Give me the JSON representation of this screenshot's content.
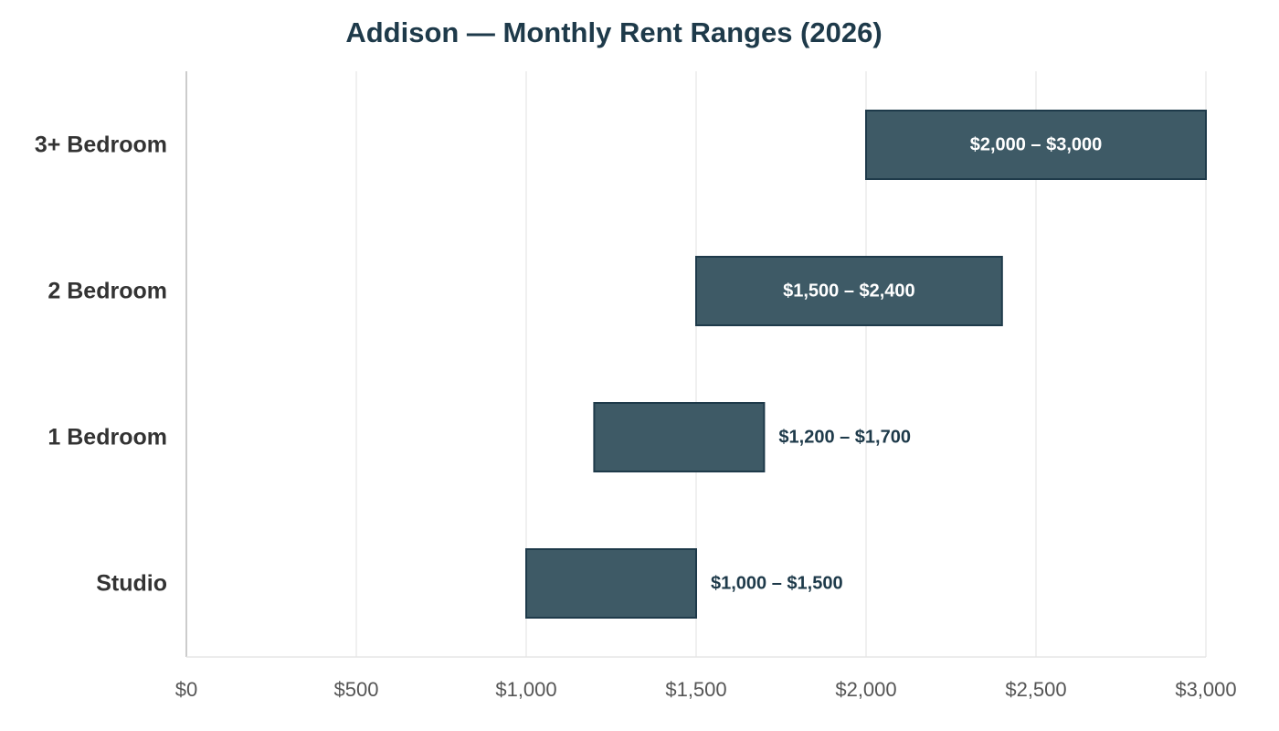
{
  "chart_data": {
    "type": "bar",
    "orientation": "horizontal",
    "title": "Addison — Monthly Rent Ranges (2026)",
    "xlabel": "",
    "ylabel": "",
    "xlim": [
      0,
      3000
    ],
    "x_ticks": [
      0,
      500,
      1000,
      1500,
      2000,
      2500,
      3000
    ],
    "x_tick_labels": [
      "$0",
      "$500",
      "$1,000",
      "$1,500",
      "$2,000",
      "$2,500",
      "$3,000"
    ],
    "grid": "vertical",
    "legend": "none",
    "bar_color": "#3e5a66",
    "bar_edge_color": "#1e3a4a",
    "categories": [
      "Studio",
      "1 Bedroom",
      "2 Bedroom",
      "3+ Bedroom"
    ],
    "ranges": [
      {
        "category": "Studio",
        "min": 1000,
        "max": 1500,
        "label": "$1,000 – $1,500"
      },
      {
        "category": "1 Bedroom",
        "min": 1200,
        "max": 1700,
        "label": "$1,200 – $1,700"
      },
      {
        "category": "2 Bedroom",
        "min": 1500,
        "max": 2400,
        "label": "$1,500 – $2,400"
      },
      {
        "category": "3+ Bedroom",
        "min": 2000,
        "max": 3000,
        "label": "$2,000 – $3,000"
      }
    ]
  }
}
